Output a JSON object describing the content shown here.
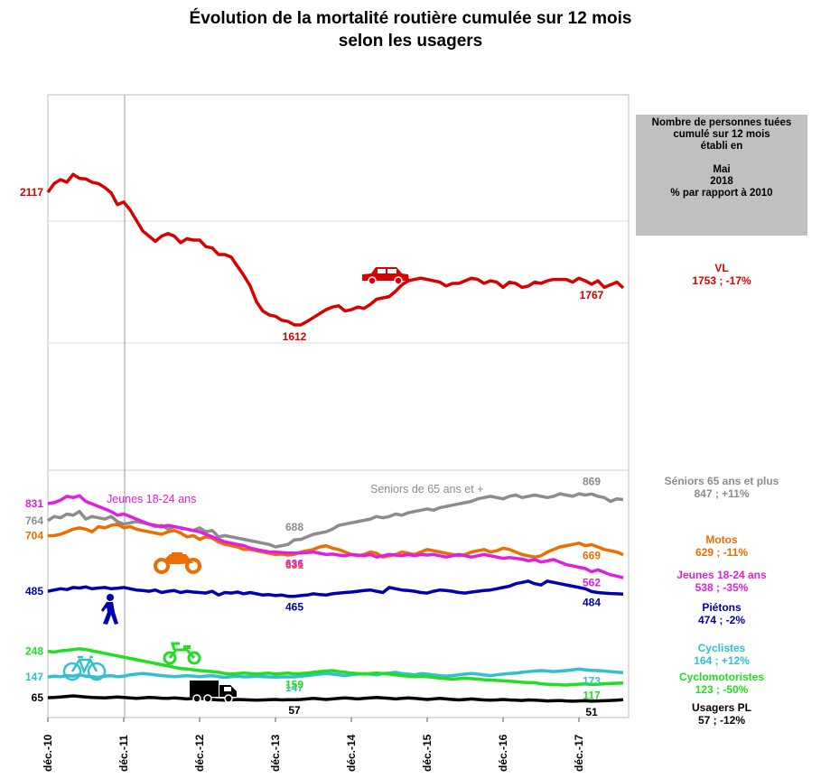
{
  "title_line1": "Évolution de la mortalité routière cumulée sur 12 mois",
  "title_line2": "selon les usagers",
  "info_box": {
    "line1": "Nombre de personnes tuées",
    "line2": "cumulé sur 12 mois",
    "line3": "établi en",
    "line4": "Mai",
    "line5": "2018",
    "line6": "% par rapport à 2010"
  },
  "legend": [
    {
      "id": "vl",
      "name": "VL",
      "value": "1753 ; -17%",
      "color": "#d80000"
    },
    {
      "id": "seniors",
      "name": "Séniors 65 ans et plus",
      "value": "847 ; +11%",
      "color": "#8c8c8c"
    },
    {
      "id": "motos",
      "name": "Motos",
      "value": "629 ; -11%",
      "color": "#ee6d00"
    },
    {
      "id": "jeunes",
      "name": "Jeunes 18-24 ans",
      "value": "538 ; -35%",
      "color": "#e020e0"
    },
    {
      "id": "pietons",
      "name": "Piétons",
      "value": "474 ; -2%",
      "color": "#0000b0"
    },
    {
      "id": "cyclistes",
      "name": "Cyclistes",
      "value": "164 ; +12%",
      "color": "#30c0d0"
    },
    {
      "id": "cyclo",
      "name": "Cyclomotoristes",
      "value": "123 ; -50%",
      "color": "#22dd22"
    },
    {
      "id": "pl",
      "name": "Usagers PL",
      "value": "57 ; -12%",
      "color": "#000000"
    }
  ],
  "chart_data": {
    "type": "line",
    "x_tick_labels": [
      "déc.-10",
      "déc.-11",
      "déc.-12",
      "déc.-13",
      "déc.-14",
      "déc.-15",
      "déc.-16",
      "déc.-17"
    ],
    "x_range": [
      "2010-12",
      "2018-05"
    ],
    "inline_labels": [
      {
        "text": "Jeunes 18-24 ans",
        "series": "Jeunes 18-24 ans",
        "color": "#e020e0"
      },
      {
        "text": "Seniors de 65 ans et +",
        "series": "Séniors 65 ans et plus",
        "color": "#8c8c8c"
      }
    ],
    "series": [
      {
        "name": "VL",
        "color": "#d80000",
        "values": [
          2117,
          2150,
          2165,
          2155,
          2185,
          2170,
          2168,
          2155,
          2150,
          2135,
          2115,
          2070,
          2080,
          2050,
          2010,
          1970,
          1950,
          1930,
          1950,
          1960,
          1950,
          1925,
          1940,
          1935,
          1935,
          1910,
          1905,
          1880,
          1880,
          1870,
          1835,
          1800,
          1760,
          1700,
          1665,
          1650,
          1645,
          1630,
          1625,
          1612,
          1612,
          1625,
          1640,
          1655,
          1670,
          1680,
          1685,
          1665,
          1670,
          1680,
          1675,
          1690,
          1710,
          1715,
          1720,
          1740,
          1765,
          1780,
          1785,
          1790,
          1785,
          1780,
          1775,
          1760,
          1770,
          1770,
          1780,
          1790,
          1785,
          1770,
          1780,
          1775,
          1755,
          1775,
          1770,
          1755,
          1760,
          1775,
          1770,
          1780,
          1785,
          1785,
          1785,
          1775,
          1790,
          1780,
          1767,
          1780,
          1755,
          1765,
          1775,
          1753
        ],
        "labels": [
          {
            "text": "2117",
            "index": 0
          },
          {
            "text": "1612",
            "index": 39
          },
          {
            "text": "1767",
            "index": 86
          }
        ]
      },
      {
        "name": "Séniors 65 ans et plus",
        "color": "#8c8c8c",
        "values": [
          764,
          780,
          775,
          790,
          785,
          800,
          770,
          780,
          775,
          770,
          780,
          760,
          750,
          755,
          760,
          755,
          750,
          740,
          745,
          730,
          740,
          735,
          730,
          725,
          735,
          720,
          725,
          700,
          705,
          700,
          695,
          690,
          685,
          680,
          675,
          670,
          660,
          665,
          670,
          688,
          690,
          700,
          710,
          715,
          720,
          730,
          745,
          750,
          755,
          760,
          765,
          770,
          780,
          775,
          780,
          790,
          785,
          795,
          800,
          805,
          810,
          805,
          815,
          820,
          825,
          830,
          835,
          840,
          850,
          855,
          860,
          855,
          850,
          860,
          865,
          855,
          860,
          865,
          860,
          855,
          860,
          870,
          865,
          860,
          870,
          865,
          869,
          860,
          855,
          840,
          850,
          847
        ],
        "labels": [
          {
            "text": "764",
            "index": 0
          },
          {
            "text": "688",
            "index": 39
          },
          {
            "text": "869",
            "index": 86
          }
        ]
      },
      {
        "name": "Motos",
        "color": "#ee6d00",
        "values": [
          704,
          705,
          710,
          720,
          730,
          735,
          730,
          720,
          740,
          735,
          745,
          750,
          735,
          740,
          730,
          725,
          720,
          715,
          710,
          720,
          725,
          715,
          700,
          705,
          690,
          700,
          695,
          680,
          670,
          665,
          660,
          650,
          650,
          645,
          640,
          635,
          630,
          632,
          628,
          631,
          640,
          645,
          650,
          660,
          665,
          655,
          650,
          640,
          630,
          625,
          630,
          640,
          635,
          620,
          625,
          630,
          640,
          635,
          630,
          640,
          650,
          645,
          640,
          635,
          630,
          625,
          630,
          640,
          645,
          650,
          640,
          645,
          655,
          650,
          640,
          630,
          625,
          620,
          625,
          640,
          650,
          660,
          665,
          670,
          675,
          665,
          669,
          660,
          650,
          645,
          640,
          629
        ],
        "labels": [
          {
            "text": "704",
            "index": 0
          },
          {
            "text": "631",
            "index": 39
          },
          {
            "text": "669",
            "index": 86
          }
        ]
      },
      {
        "name": "Jeunes 18-24 ans",
        "color": "#e020e0",
        "values": [
          831,
          835,
          845,
          860,
          855,
          862,
          840,
          830,
          820,
          810,
          800,
          785,
          790,
          780,
          770,
          760,
          750,
          745,
          740,
          745,
          740,
          735,
          730,
          725,
          720,
          710,
          700,
          690,
          680,
          675,
          670,
          665,
          655,
          650,
          645,
          640,
          640,
          638,
          636,
          636,
          636,
          638,
          640,
          635,
          630,
          632,
          628,
          625,
          630,
          628,
          625,
          630,
          620,
          625,
          630,
          628,
          625,
          630,
          625,
          630,
          628,
          630,
          625,
          620,
          625,
          630,
          625,
          620,
          625,
          630,
          625,
          620,
          615,
          618,
          615,
          612,
          605,
          610,
          600,
          605,
          610,
          600,
          590,
          585,
          580,
          575,
          562,
          570,
          560,
          550,
          545,
          538
        ],
        "labels": [
          {
            "text": "831",
            "index": 0
          },
          {
            "text": "636",
            "index": 39
          },
          {
            "text": "562",
            "index": 86
          }
        ]
      },
      {
        "name": "Piétons",
        "color": "#0000b0",
        "values": [
          485,
          490,
          495,
          492,
          500,
          498,
          502,
          495,
          498,
          500,
          495,
          497,
          500,
          495,
          490,
          488,
          485,
          490,
          480,
          485,
          488,
          480,
          485,
          482,
          480,
          478,
          485,
          470,
          480,
          478,
          482,
          475,
          480,
          475,
          470,
          472,
          468,
          470,
          465,
          465,
          468,
          470,
          475,
          472,
          470,
          475,
          478,
          480,
          482,
          485,
          488,
          490,
          485,
          480,
          500,
          495,
          490,
          488,
          485,
          480,
          478,
          485,
          490,
          488,
          485,
          480,
          478,
          482,
          485,
          488,
          490,
          495,
          500,
          505,
          515,
          520,
          525,
          515,
          510,
          525,
          520,
          515,
          510,
          505,
          500,
          495,
          484,
          480,
          478,
          476,
          475,
          474
        ],
        "labels": [
          {
            "text": "485",
            "index": 0
          },
          {
            "text": "465",
            "index": 39
          },
          {
            "text": "484",
            "index": 86
          }
        ]
      },
      {
        "name": "Cyclistes",
        "color": "#30c0d0",
        "values": [
          147,
          150,
          148,
          152,
          150,
          155,
          150,
          148,
          145,
          150,
          152,
          148,
          150,
          155,
          158,
          160,
          158,
          155,
          152,
          150,
          148,
          150,
          152,
          150,
          148,
          150,
          152,
          148,
          145,
          148,
          150,
          147,
          148,
          150,
          148,
          147,
          146,
          147,
          147,
          147,
          150,
          152,
          155,
          158,
          160,
          158,
          155,
          152,
          155,
          158,
          160,
          158,
          155,
          160,
          162,
          165,
          160,
          158,
          155,
          160,
          158,
          155,
          152,
          150,
          152,
          155,
          158,
          160,
          158,
          155,
          152,
          155,
          158,
          160,
          162,
          165,
          168,
          170,
          172,
          170,
          168,
          170,
          172,
          175,
          178,
          175,
          173,
          172,
          170,
          168,
          166,
          164
        ],
        "labels": [
          {
            "text": "147",
            "index": 0
          },
          {
            "text": "147",
            "index": 39
          },
          {
            "text": "173",
            "index": 86
          }
        ]
      },
      {
        "name": "Cyclomotoristes",
        "color": "#22dd22",
        "values": [
          248,
          245,
          250,
          252,
          255,
          258,
          255,
          250,
          245,
          240,
          235,
          230,
          225,
          220,
          215,
          210,
          205,
          200,
          195,
          190,
          185,
          180,
          178,
          175,
          172,
          170,
          168,
          165,
          160,
          158,
          160,
          162,
          160,
          158,
          160,
          162,
          158,
          160,
          162,
          159,
          160,
          162,
          165,
          168,
          170,
          172,
          168,
          165,
          162,
          160,
          158,
          160,
          162,
          160,
          158,
          155,
          152,
          150,
          148,
          150,
          148,
          145,
          142,
          140,
          138,
          140,
          142,
          140,
          138,
          136,
          135,
          133,
          132,
          130,
          128,
          126,
          125,
          124,
          120,
          118,
          117,
          116,
          115,
          117,
          118,
          119,
          117,
          118,
          120,
          121,
          122,
          123
        ],
        "labels": [
          {
            "text": "248",
            "index": 0
          },
          {
            "text": "159",
            "index": 39
          },
          {
            "text": "117",
            "index": 86
          }
        ]
      },
      {
        "name": "Usagers PL",
        "color": "#000000",
        "values": [
          65,
          66,
          68,
          70,
          72,
          70,
          68,
          66,
          65,
          64,
          66,
          68,
          66,
          64,
          62,
          64,
          66,
          65,
          63,
          62,
          64,
          62,
          60,
          62,
          63,
          60,
          58,
          56,
          55,
          56,
          58,
          57,
          56,
          55,
          56,
          57,
          58,
          56,
          57,
          57,
          58,
          60,
          62,
          60,
          58,
          60,
          62,
          64,
          62,
          60,
          62,
          64,
          66,
          64,
          62,
          60,
          62,
          64,
          62,
          60,
          58,
          60,
          62,
          60,
          58,
          56,
          58,
          60,
          58,
          56,
          55,
          56,
          58,
          56,
          55,
          54,
          56,
          55,
          54,
          52,
          53,
          54,
          52,
          51,
          52,
          53,
          51,
          52,
          53,
          54,
          55,
          57
        ],
        "labels": [
          {
            "text": "65",
            "index": 0
          },
          {
            "text": "57",
            "index": 39
          },
          {
            "text": "51",
            "index": 86
          }
        ]
      }
    ]
  }
}
